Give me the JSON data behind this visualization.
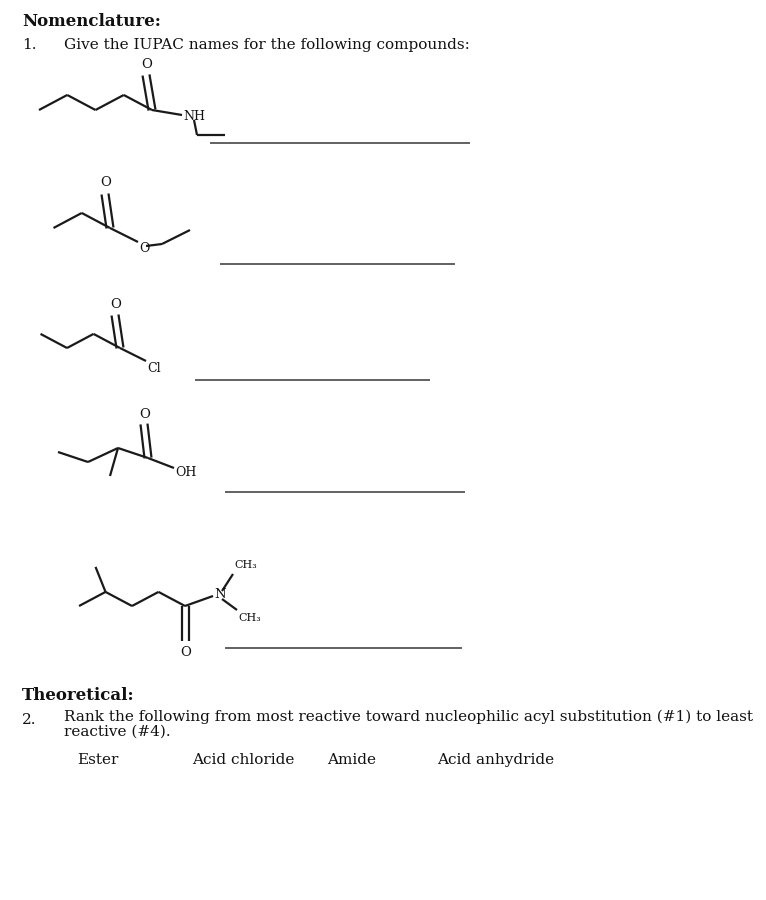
{
  "bg_color": "#ffffff",
  "title": "Nomenclature:",
  "q1_text": "Give the IUPAC names for the following compounds:",
  "theoretical_title": "Theoretical:",
  "q2_text_line1": "Rank the following from most reactive toward nucleophilic acyl substitution (#1) to least",
  "q2_text_line2": "reactive (#4).",
  "q2_items": [
    "Ester",
    "Acid chloride",
    "Amide",
    "Acid anhydride"
  ],
  "line_color": "#1a1a1a",
  "text_color": "#111111",
  "answer_line_color": "#555555",
  "font": "DejaVu Serif"
}
